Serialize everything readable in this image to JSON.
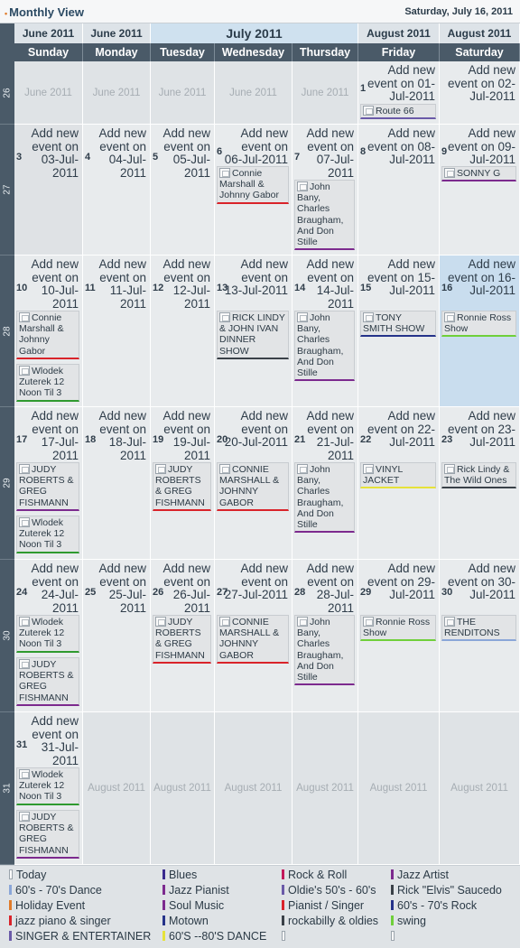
{
  "header": {
    "title": "Monthly View",
    "date": "Saturday, July 16, 2011"
  },
  "month_headers": [
    "June 2011",
    "June 2011",
    "July 2011",
    "August 2011",
    "August 2011"
  ],
  "days": [
    "Sunday",
    "Monday",
    "Tuesday",
    "Wednesday",
    "Thursday",
    "Friday",
    "Saturday"
  ],
  "add_text": [
    "Add new event on 01-Jul-2011",
    "Add new event on 02-Jul-2011",
    "Add new event on 03-Jul-2011",
    "Add new event on 04-Jul-2011",
    "Add new event on 05-Jul-2011",
    "Add new event on 06-Jul-2011",
    "Add new event on 07-Jul-2011",
    "Add new event on 08-Jul-2011",
    "Add new event on 09-Jul-2011",
    "Add new event on 10-Jul-2011",
    "Add new event on 11-Jul-2011",
    "Add new event on 12-Jul-2011",
    "Add new event on 13-Jul-2011",
    "Add new event on 14-Jul-2011",
    "Add new event on 15-Jul-2011",
    "Add new event on 16-Jul-2011",
    "Add new event on 17-Jul-2011",
    "Add new event on 18-Jul-2011",
    "Add new event on 19-Jul-2011",
    "Add new event on 20-Jul-2011",
    "Add new event on 21-Jul-2011",
    "Add new event on 22-Jul-2011",
    "Add new event on 23-Jul-2011",
    "Add new event on 24-Jul-2011",
    "Add new event on 25-Jul-2011",
    "Add new event on 26-Jul-2011",
    "Add new event on 27-Jul-2011",
    "Add new event on 28-Jul-2011",
    "Add new event on 29-Jul-2011",
    "Add new event on 30-Jul-2011",
    "Add new event on 31-Jul-2011"
  ],
  "day_numbers": [
    "1",
    "2",
    "3",
    "4",
    "5",
    "6",
    "7",
    "8",
    "9",
    "10",
    "11",
    "12",
    "13",
    "14",
    "15",
    "16",
    "17",
    "18",
    "19",
    "20",
    "21",
    "22",
    "23",
    "24",
    "25",
    "26",
    "27",
    "28",
    "29",
    "30",
    "31"
  ],
  "weeks": [
    "26",
    "27",
    "28",
    "29",
    "30",
    "31"
  ],
  "other_labels": {
    "june": "June 2011",
    "august": "August 2011"
  },
  "events": {
    "e1": {
      "title": "Route 66",
      "color": "#6a5aa8"
    },
    "e6": {
      "title": "Connie Marshall & Johnny Gabor",
      "color": "#d9232a"
    },
    "e7": {
      "title": "John Bany, Charles Braugham, And Don Stille",
      "color": "#7c2a8e"
    },
    "e9": {
      "title": "SONNY G",
      "color": "#7c2a8e"
    },
    "e10a": {
      "title": "Connie Marshall & Johnny Gabor",
      "color": "#d9232a"
    },
    "e10b": {
      "title": "Wlodek Zuterek 12 Noon Til 3",
      "color": "#2f9a2f"
    },
    "e13": {
      "title": "RICK LINDY & JOHN IVAN DINNER SHOW",
      "color": "#3a4148"
    },
    "e14": {
      "title": "John Bany, Charles Braugham, And Don Stille",
      "color": "#7c2a8e"
    },
    "e15": {
      "title": "TONY SMITH SHOW",
      "color": "#25338a"
    },
    "e16": {
      "title": "Ronnie Ross Show",
      "color": "#6fcf3a"
    },
    "e17a": {
      "title": "JUDY ROBERTS & GREG FISHMANN",
      "color": "#7c2a8e"
    },
    "e17b": {
      "title": "Wlodek Zuterek 12 Noon Til 3",
      "color": "#2f9a2f"
    },
    "e19": {
      "title": "JUDY ROBERTS & GREG FISHMANN",
      "color": "#d9232a"
    },
    "e20": {
      "title": "CONNIE MARSHALL & JOHNNY GABOR",
      "color": "#d9232a"
    },
    "e21": {
      "title": "John Bany, Charles Braugham, And Don Stille",
      "color": "#7c2a8e"
    },
    "e22": {
      "title": "VINYL JACKET",
      "color": "#e6e23a"
    },
    "e23": {
      "title": "Rick Lindy & The Wild Ones",
      "color": "#3a4148"
    },
    "e24a": {
      "title": "Wlodek Zuterek 12 Noon Til 3",
      "color": "#2f9a2f"
    },
    "e24b": {
      "title": "JUDY ROBERTS & GREG FISHMANN",
      "color": "#7c2a8e"
    },
    "e26": {
      "title": "JUDY ROBERTS & GREG FISHMANN",
      "color": "#d9232a"
    },
    "e27": {
      "title": "CONNIE MARSHALL & JOHNNY GABOR",
      "color": "#d9232a"
    },
    "e28": {
      "title": "John Bany, Charles Braugham, And Don Stille",
      "color": "#7c2a8e"
    },
    "e29": {
      "title": "Ronnie Ross Show",
      "color": "#6fcf3a"
    },
    "e30": {
      "title": "THE RENDITONS",
      "color": "#8aa6d8"
    },
    "e31a": {
      "title": "Wlodek Zuterek 12 Noon Til 3",
      "color": "#2f9a2f"
    },
    "e31b": {
      "title": "JUDY ROBERTS & GREG FISHMANN",
      "color": "#7c2a8e"
    }
  },
  "legend": [
    {
      "label": "Today",
      "color": "#ffffff"
    },
    {
      "label": "Blues",
      "color": "#3a2a8e"
    },
    {
      "label": "Rock & Roll",
      "color": "#c2185b"
    },
    {
      "label": "Jazz Artist",
      "color": "#7c2a8e"
    },
    {
      "label": "60's - 70's Dance",
      "color": "#8aa6d8"
    },
    {
      "label": "Jazz Pianist",
      "color": "#7c2a8e"
    },
    {
      "label": "Oldie's 50's - 60's",
      "color": "#6a5aa8"
    },
    {
      "label": "Rick \"Elvis\" Saucedo",
      "color": "#3a4148"
    },
    {
      "label": "Holiday Event",
      "color": "#e07b2a"
    },
    {
      "label": "Soul Music",
      "color": "#7c2a8e"
    },
    {
      "label": "Pianist / Singer",
      "color": "#d9232a"
    },
    {
      "label": "60's - 70's Rock",
      "color": "#25338a"
    },
    {
      "label": "jazz piano & singer",
      "color": "#d9232a"
    },
    {
      "label": "Motown",
      "color": "#25338a"
    },
    {
      "label": "rockabilly & oldies",
      "color": "#3a4148"
    },
    {
      "label": "swing",
      "color": "#6fcf3a"
    },
    {
      "label": "SINGER & ENTERTAINER",
      "color": "#6a5aa8"
    },
    {
      "label": "60'S --80'S DANCE",
      "color": "#e6e23a"
    },
    {
      "label": "",
      "color": "#ffffff"
    },
    {
      "label": "",
      "color": "#ffffff"
    }
  ]
}
